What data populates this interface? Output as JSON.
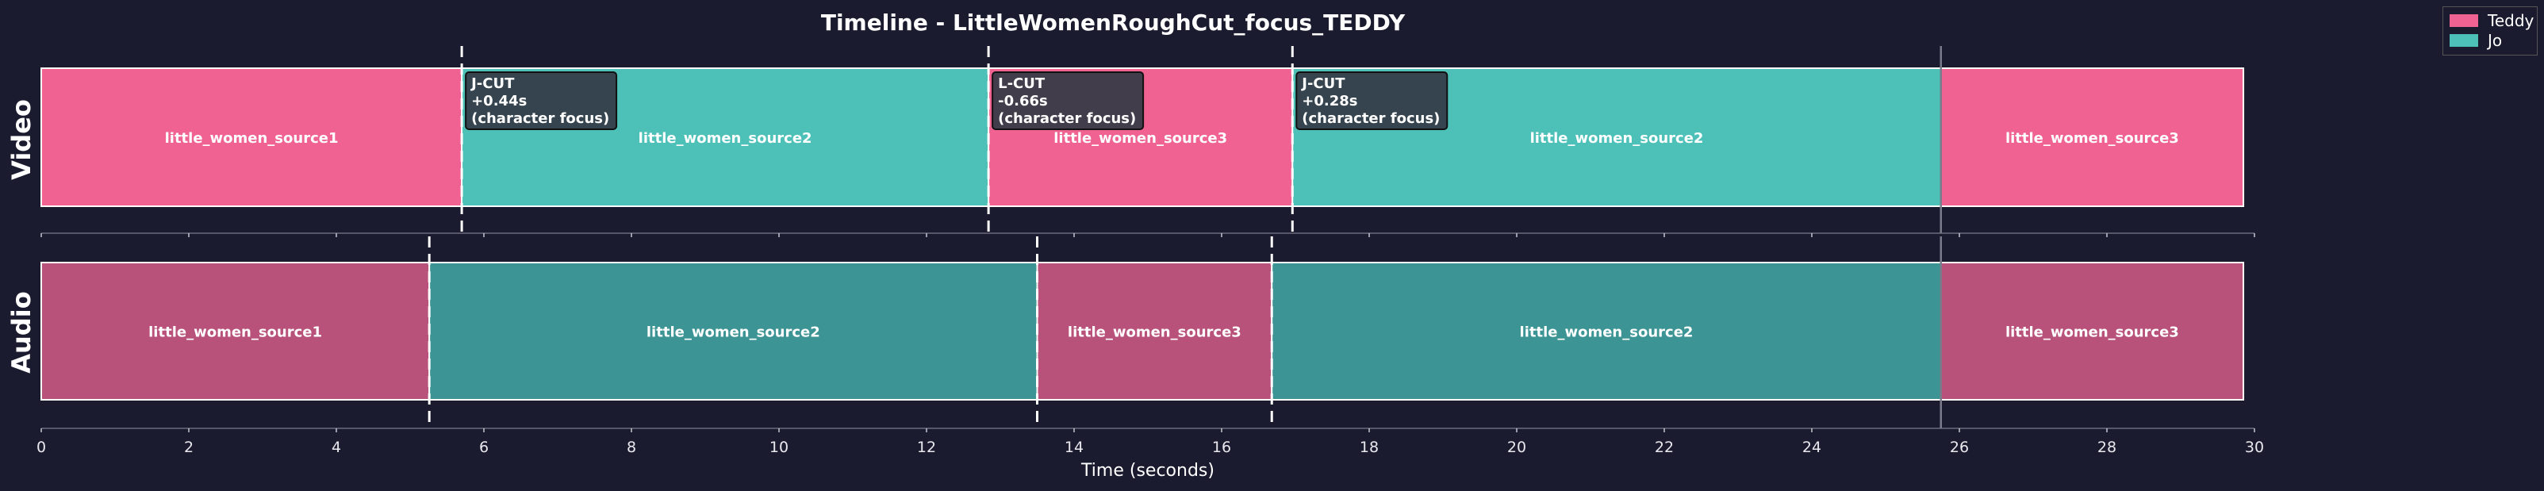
{
  "chart_data": {
    "type": "timeline",
    "title": "Timeline - LittleWomenRoughCut_focus_TEDDY",
    "xlabel": "Time (seconds)",
    "xlim": [
      0,
      30
    ],
    "xticks": [
      0,
      2,
      4,
      6,
      8,
      10,
      12,
      14,
      16,
      18,
      20,
      22,
      24,
      26,
      28,
      30
    ],
    "legend_position": "top-right",
    "legend": [
      {
        "name": "Teddy",
        "color": "#f06292"
      },
      {
        "name": "Jo",
        "color": "#4dc1b8"
      }
    ],
    "tracks": [
      {
        "name": "Video",
        "clips": [
          {
            "label": "little_women_source1",
            "start": 0.0,
            "end": 5.7,
            "character": "Teddy"
          },
          {
            "label": "little_women_source2",
            "start": 5.7,
            "end": 12.84,
            "character": "Jo"
          },
          {
            "label": "little_women_source3",
            "start": 12.84,
            "end": 16.96,
            "character": "Teddy"
          },
          {
            "label": "little_women_source2",
            "start": 16.96,
            "end": 25.75,
            "character": "Jo"
          },
          {
            "label": "little_women_source3",
            "start": 25.75,
            "end": 29.85,
            "character": "Teddy"
          }
        ],
        "annotations": [
          {
            "time": 5.7,
            "lines": [
              "J-CUT",
              "+0.44s",
              "(character focus)"
            ]
          },
          {
            "time": 12.84,
            "lines": [
              "L-CUT",
              "-0.66s",
              "(character focus)"
            ]
          },
          {
            "time": 16.96,
            "lines": [
              "J-CUT",
              "+0.28s",
              "(character focus)"
            ]
          }
        ]
      },
      {
        "name": "Audio",
        "clips": [
          {
            "label": "little_women_source1",
            "start": 0.0,
            "end": 5.26,
            "character": "Teddy"
          },
          {
            "label": "little_women_source2",
            "start": 5.26,
            "end": 13.5,
            "character": "Jo"
          },
          {
            "label": "little_women_source3",
            "start": 13.5,
            "end": 16.68,
            "character": "Teddy"
          },
          {
            "label": "little_women_source2",
            "start": 16.68,
            "end": 25.75,
            "character": "Jo"
          },
          {
            "label": "little_women_source3",
            "start": 25.75,
            "end": 29.85,
            "character": "Teddy"
          }
        ]
      }
    ]
  },
  "colors": {
    "background": "#1a1b2e",
    "video_teddy": "#f06292",
    "video_jo": "#4dc1b8",
    "audio_teddy": "#b9527a",
    "audio_jo": "#3d9494",
    "annotation_box": "#333a44",
    "text": "#ffffff"
  }
}
